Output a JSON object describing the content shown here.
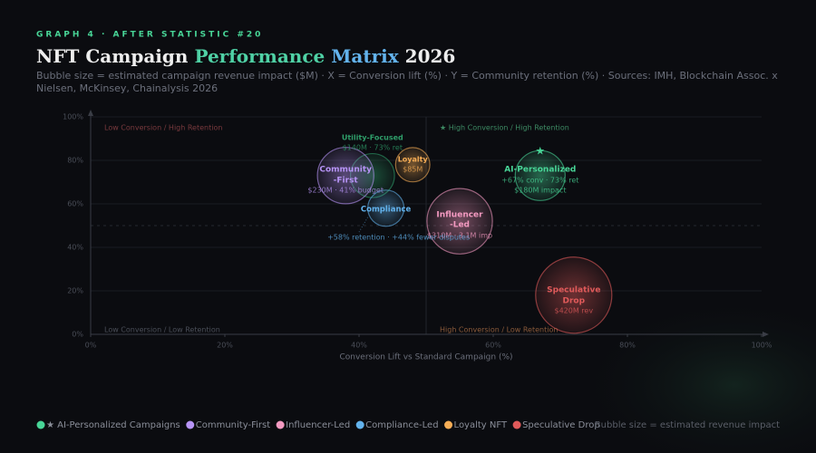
{
  "chart_data": {
    "type": "bubble",
    "kicker": "GRAPH 4 · AFTER STATISTIC #20",
    "title_parts": [
      {
        "text": "NFT Campaign",
        "color": "#eeeeee"
      },
      {
        "text": "Performance",
        "color": "#4fd1a5"
      },
      {
        "text": "Matrix",
        "color": "#63b3ed"
      },
      {
        "text": "2026",
        "color": "#eeeeee"
      }
    ],
    "subtitle": "Bubble size = estimated campaign revenue impact ($M) · X = Conversion lift (%) · Y = Community retention (%) · Sources: IMH, Blockchain Assoc. x Nielsen, McKinsey, Chainalysis 2026",
    "xlabel": "Conversion Lift vs Standard Campaign (%)",
    "xlim": [
      0,
      100
    ],
    "ylim": [
      0,
      100
    ],
    "xticks": [
      {
        "value": 0,
        "label": "0%"
      },
      {
        "value": 20,
        "label": "20%"
      },
      {
        "value": 40,
        "label": "40%"
      },
      {
        "value": 60,
        "label": "60%"
      },
      {
        "value": 80,
        "label": "80%"
      },
      {
        "value": 100,
        "label": "100%"
      }
    ],
    "yticks": [
      {
        "value": 0,
        "label": "0%"
      },
      {
        "value": 20,
        "label": "20%"
      },
      {
        "value": 40,
        "label": "40%"
      },
      {
        "value": 60,
        "label": "60%"
      },
      {
        "value": 80,
        "label": "80%"
      },
      {
        "value": 100,
        "label": "100%"
      }
    ],
    "grid": true,
    "xsplit": 50,
    "ysplit": 50,
    "quadrants": [
      "Low Conversion / High Retention",
      "★ High Conversion / High Retention",
      "Low Conversion / Low Retention",
      "High Conversion / Low Retention"
    ],
    "series": [
      {
        "name": "★ AI-Personalized Campaigns",
        "color": "#48d597",
        "x": 67,
        "y": 73,
        "size": 180,
        "labels": [
          "★",
          "AI-Personalized",
          "+67% conv · 73% ret",
          "$180M impact"
        ]
      },
      {
        "name": "Community-First",
        "color": "#b794f6",
        "x": 38,
        "y": 73,
        "size": 230,
        "labels": [
          "Community",
          "-First",
          "$230M · 41% budget"
        ]
      },
      {
        "name": "Influencer-Led",
        "color": "#f49ac1",
        "x": 55,
        "y": 52,
        "size": 310,
        "labels": [
          "Influencer",
          "-Led",
          "$310M · 3.1M imp"
        ]
      },
      {
        "name": "Compliance-Led",
        "color": "#63b3ed",
        "x": 44,
        "y": 58,
        "size": 95,
        "labels": [
          "Compliance",
          "+58% retention · +44% fewer disputes"
        ]
      },
      {
        "name": "Loyalty NFT",
        "color": "#f6ad55",
        "x": 48,
        "y": 78,
        "size": 85,
        "labels": [
          "Loyalty",
          "$85M"
        ]
      },
      {
        "name": "Speculative Drop",
        "color": "#e05a5a",
        "x": 72,
        "y": 18,
        "size": 420,
        "labels": [
          "Speculative",
          "Drop",
          "$420M rev"
        ]
      },
      {
        "color": "#2f9e6a",
        "x": 42,
        "y": 73,
        "size": 140,
        "labels": [
          "Utility-Focused",
          "$140M · 73% ret"
        ]
      }
    ],
    "legend_note": "Bubble size = estimated revenue impact"
  }
}
